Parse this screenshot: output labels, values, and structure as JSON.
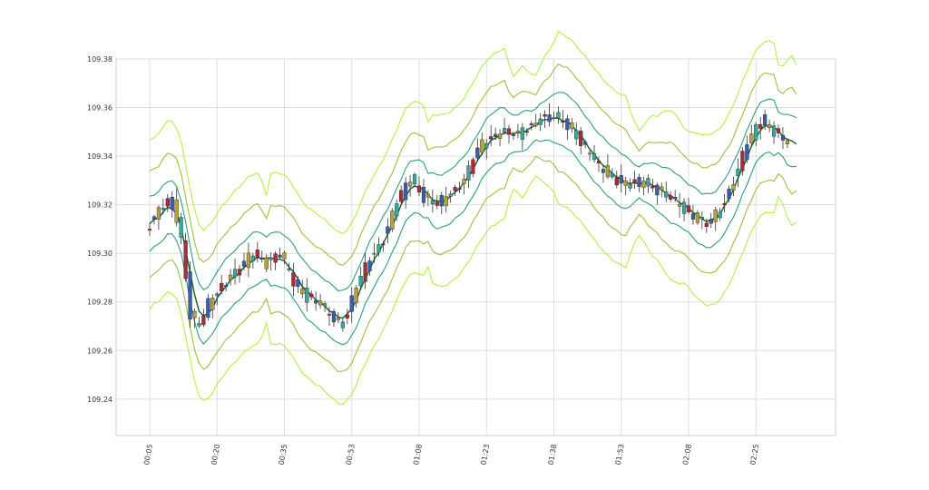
{
  "chart_data": {
    "type": "candlestick",
    "title": "",
    "xlabel": "",
    "ylabel": "",
    "ylim": [
      109.225,
      109.38
    ],
    "grid": true,
    "legend": "none",
    "y_ticks": [
      "109.24",
      "109.26",
      "109.28",
      "109.30",
      "109.32",
      "109.34",
      "109.36",
      "109.38"
    ],
    "x_ticks": [
      "00:05",
      "00:20",
      "00:35",
      "00:53",
      "01:08",
      "01:23",
      "01:38",
      "01:53",
      "02:08",
      "02:25"
    ],
    "x_tick_index": [
      0,
      15,
      30,
      45,
      60,
      75,
      90,
      105,
      120,
      135
    ],
    "bar_count": 145,
    "anchors": [
      [
        0,
        109.309
      ],
      [
        3,
        109.318
      ],
      [
        6,
        109.322
      ],
      [
        8,
        109.306
      ],
      [
        10,
        109.275
      ],
      [
        12,
        109.27
      ],
      [
        14,
        109.279
      ],
      [
        17,
        109.287
      ],
      [
        20,
        109.292
      ],
      [
        24,
        109.3
      ],
      [
        27,
        109.296
      ],
      [
        30,
        109.3
      ],
      [
        33,
        109.288
      ],
      [
        36,
        109.282
      ],
      [
        39,
        109.279
      ],
      [
        42,
        109.273
      ],
      [
        44,
        109.271
      ],
      [
        47,
        109.286
      ],
      [
        50,
        109.298
      ],
      [
        53,
        109.306
      ],
      [
        56,
        109.321
      ],
      [
        59,
        109.331
      ],
      [
        62,
        109.323
      ],
      [
        65,
        109.32
      ],
      [
        68,
        109.325
      ],
      [
        71,
        109.33
      ],
      [
        74,
        109.343
      ],
      [
        77,
        109.348
      ],
      [
        80,
        109.35
      ],
      [
        83,
        109.349
      ],
      [
        86,
        109.353
      ],
      [
        89,
        109.356
      ],
      [
        92,
        109.356
      ],
      [
        95,
        109.351
      ],
      [
        98,
        109.343
      ],
      [
        101,
        109.336
      ],
      [
        104,
        109.331
      ],
      [
        107,
        109.328
      ],
      [
        110,
        109.33
      ],
      [
        113,
        109.327
      ],
      [
        116,
        109.324
      ],
      [
        119,
        109.32
      ],
      [
        122,
        109.315
      ],
      [
        125,
        109.312
      ],
      [
        128,
        109.318
      ],
      [
        131,
        109.33
      ],
      [
        134,
        109.345
      ],
      [
        137,
        109.355
      ],
      [
        140,
        109.35
      ],
      [
        144,
        109.344
      ]
    ],
    "series": [
      {
        "name": "",
        "offset": 0.0,
        "color": "#1f6b2e",
        "width": 1.5
      },
      {
        "name": "",
        "offset": 0.005,
        "color": "#2d9e77",
        "width": 1.1
      },
      {
        "name": "",
        "offset": -0.005,
        "color": "#2d9e77",
        "width": 1.1
      },
      {
        "name": "",
        "offset": 0.01,
        "color": "#9fbf3a",
        "width": 1.1
      },
      {
        "name": "",
        "offset": -0.01,
        "color": "#9fbf3a",
        "width": 1.1
      },
      {
        "name": "",
        "offset": 0.016,
        "color": "#aef23e",
        "width": 1.1
      },
      {
        "name": "",
        "offset": -0.016,
        "color": "#aef23e",
        "width": 1.1
      }
    ],
    "candle_colors": [
      "#b0283b",
      "#3a5fa8",
      "#b7a23a",
      "#3aa8a0"
    ]
  }
}
